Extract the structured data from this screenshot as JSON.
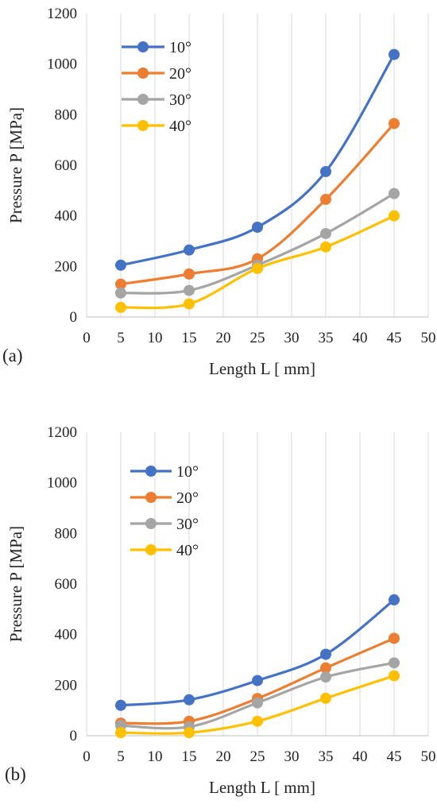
{
  "chart_data": [
    {
      "type": "line",
      "panel_label": "(a)",
      "xlabel": "Length L [ mm]",
      "ylabel": "Pressure P [MPa]",
      "xlim": [
        0,
        50
      ],
      "ylim": [
        0,
        1200
      ],
      "xticks": [
        0,
        5,
        10,
        15,
        20,
        25,
        30,
        35,
        40,
        45,
        50
      ],
      "yticks": [
        0,
        200,
        400,
        600,
        800,
        1000,
        1200
      ],
      "grid": "vertical",
      "legend_position": "top-left",
      "x": [
        5,
        15,
        25,
        35,
        45
      ],
      "series": [
        {
          "name": "10°",
          "color": "#4472C4",
          "values": [
            205,
            265,
            355,
            575,
            1038
          ]
        },
        {
          "name": "20°",
          "color": "#ED7D31",
          "values": [
            130,
            170,
            230,
            465,
            765
          ]
        },
        {
          "name": "30°",
          "color": "#A5A5A5",
          "values": [
            95,
            105,
            205,
            330,
            488
          ]
        },
        {
          "name": "40°",
          "color": "#FFC000",
          "values": [
            38,
            52,
            192,
            277,
            400
          ]
        }
      ]
    },
    {
      "type": "line",
      "panel_label": "(b)",
      "xlabel": "Length L [ mm]",
      "ylabel": "Pressure P [MPa]",
      "xlim": [
        0,
        50
      ],
      "ylim": [
        0,
        1200
      ],
      "xticks": [
        0,
        5,
        10,
        15,
        20,
        25,
        30,
        35,
        40,
        45,
        50
      ],
      "yticks": [
        0,
        200,
        400,
        600,
        800,
        1000,
        1200
      ],
      "grid": "vertical",
      "legend_position": "top-left",
      "x": [
        5,
        15,
        25,
        35,
        45
      ],
      "series": [
        {
          "name": "10°",
          "color": "#4472C4",
          "values": [
            120,
            142,
            218,
            322,
            537
          ]
        },
        {
          "name": "20°",
          "color": "#ED7D31",
          "values": [
            50,
            57,
            147,
            268,
            385
          ]
        },
        {
          "name": "30°",
          "color": "#A5A5A5",
          "values": [
            40,
            35,
            130,
            232,
            288
          ]
        },
        {
          "name": "40°",
          "color": "#FFC000",
          "values": [
            12,
            12,
            57,
            148,
            237
          ]
        }
      ]
    }
  ]
}
